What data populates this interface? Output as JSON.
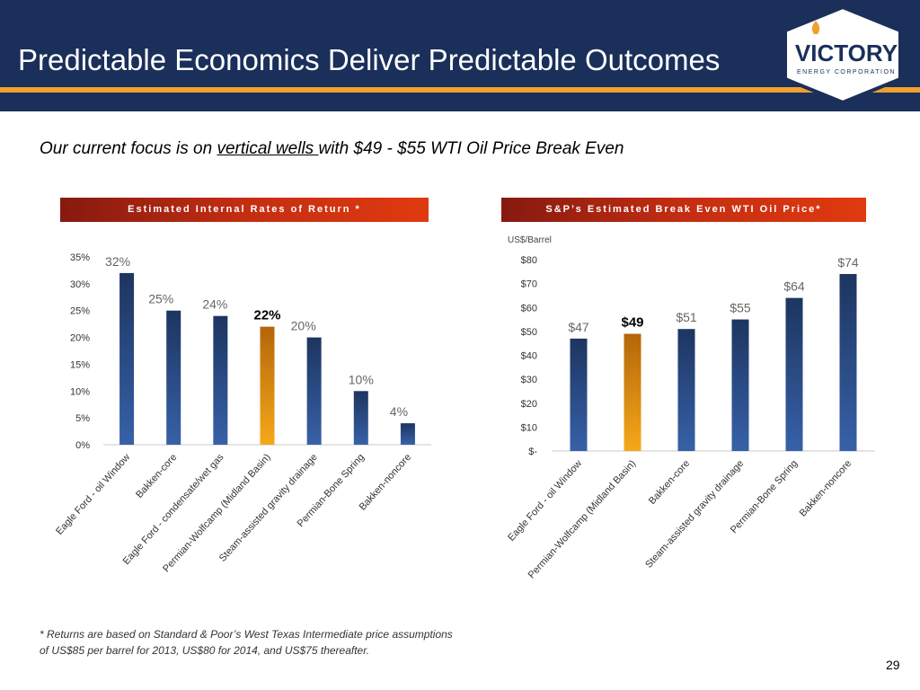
{
  "header": {
    "title": "Predictable Economics Deliver Predictable Outcomes"
  },
  "logo": {
    "name": "VICTORY",
    "tagline": "ENERGY CORPORATION"
  },
  "subtitle": {
    "before": "Our current focus is on ",
    "underlined": "vertical wells ",
    "after": "with $49 - $55 WTI Oil Price Break Even"
  },
  "chart_data": [
    {
      "type": "bar",
      "title": "Estimated Internal Rates of Return *",
      "categories": [
        "Eagle Ford - oil Window",
        "Bakken-core",
        "Eagle Ford - condensate/wet gas",
        "Permian-Wolfcamp (Midland Basin)",
        "Steam-assisted gravity drainage",
        "Permian-Bone Spring",
        "Bakken-noncore"
      ],
      "values": [
        32,
        25,
        24,
        22,
        20,
        10,
        4
      ],
      "value_labels": [
        "32%",
        "25%",
        "24%",
        "22%",
        "20%",
        "10%",
        "4%"
      ],
      "highlight_index": 3,
      "ytick_values": [
        0,
        5,
        10,
        15,
        20,
        25,
        30,
        35
      ],
      "yticks": [
        "0%",
        "5%",
        "10%",
        "15%",
        "20%",
        "25%",
        "30%",
        "35%"
      ],
      "ylim": [
        0,
        35
      ],
      "ylabel": "",
      "grid": false,
      "colors": {
        "bar": "#2b4c85",
        "highlight": "#e8960a"
      }
    },
    {
      "type": "bar",
      "title": "S&P’s Estimated Break Even WTI Oil Price*",
      "categories": [
        "Eagle Ford - oil Window",
        "Permian-Wolfcamp (Midland Basin)",
        "Bakken-core",
        "Steam-assisted gravity drainage",
        "Permian-Bone Spring",
        "Bakken-noncore"
      ],
      "values": [
        47,
        49,
        51,
        55,
        64,
        74
      ],
      "value_labels": [
        "$47",
        "$49",
        "$51",
        "$55",
        "$64",
        "$74"
      ],
      "highlight_index": 1,
      "ytick_values": [
        0,
        10,
        20,
        30,
        40,
        50,
        60,
        70,
        80
      ],
      "yticks": [
        "$-",
        "$10",
        "$20",
        "$30",
        "$40",
        "$50",
        "$60",
        "$70",
        "$80"
      ],
      "ylim": [
        0,
        80
      ],
      "ylabel": "US$/Barrel",
      "grid": false,
      "colors": {
        "bar": "#2b4c85",
        "highlight": "#e8960a"
      }
    }
  ],
  "footnote": "* Returns are based on Standard & Poor’s West Texas Intermediate price assumptions of US$85 per barrel for 2013, US$80 for 2014, and US$75 thereafter.",
  "page_number": "29"
}
